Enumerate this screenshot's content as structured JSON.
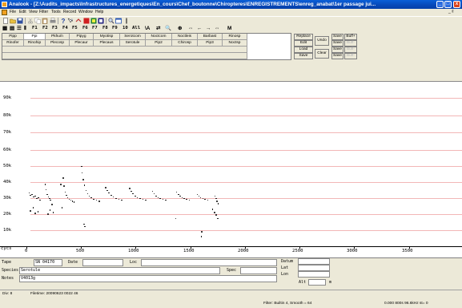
{
  "window": {
    "title": "Analook - [Z:\\Audits_impacts\\Infrastructures_energetiques\\En_cours\\Chef_boutonne\\Chiropteres\\ENREGISTREMENTS\\enreg_anabat\\1er passage jui...",
    "min_glyph": "_",
    "max_glyph": "□",
    "close_glyph": "x"
  },
  "menu": {
    "items": [
      "File",
      "Edit",
      "View",
      "Filter",
      "Tools",
      "Record",
      "Window",
      "Help"
    ],
    "mdi_controls": "_ ₫"
  },
  "toolbar2": {
    "fkeys": [
      "F1",
      "F2",
      "F3",
      "F4",
      "F5",
      "F6",
      "F7",
      "F8",
      "F9",
      "10",
      "All"
    ],
    "extra": [
      "\\A",
      "⇄",
      "🔍",
      "⊕",
      "⇔",
      "←",
      "→",
      "⇔",
      "M"
    ]
  },
  "species": {
    "row1": [
      "Pipp",
      "Ppi",
      "Pkhu/n",
      "Pipyg",
      "Myotisp",
      "Serotcom",
      "Noctcom",
      "Noctleis",
      "Barbast",
      "Rinosp"
    ],
    "row2": [
      "Rinofer",
      "Rinohip",
      "Plecosp",
      "Plecaur",
      "Plecaus",
      "Serotule",
      "Pip2",
      "Chirosp",
      "Pip3",
      "Noctsp"
    ],
    "selected_index": 1
  },
  "panel": {
    "replace": "Replace",
    "edit": "Edit",
    "load": "Load",
    "save": "Save",
    "undo": "Undo",
    "clear": "Clear",
    "save_col": [
      "Save",
      "Save",
      "Save",
      "Save"
    ],
    "buff_col": [
      "Buff+",
      "Buff-",
      "Buff-",
      "Buff-"
    ]
  },
  "chart_data": {
    "type": "scatter",
    "xlabel": "cycs",
    "ylabel": "",
    "x_ticks": [
      "0",
      "500",
      "1000",
      "1500",
      "2000",
      "2500",
      "3000",
      "3500"
    ],
    "y_ticks": [
      "10k",
      "20k",
      "30k",
      "40k",
      "50k",
      "60k",
      "70k",
      "80k",
      "90k"
    ],
    "xlim": [
      0,
      3700
    ],
    "ylim": [
      5000,
      95000
    ],
    "grid": true,
    "series": [
      {
        "values": [
          [
            20,
            33000
          ],
          [
            30,
            31500
          ],
          [
            45,
            32000
          ],
          [
            60,
            30500
          ],
          [
            75,
            31000
          ],
          [
            90,
            29500
          ],
          [
            105,
            30000
          ],
          [
            118,
            28500
          ],
          [
            30,
            22000
          ],
          [
            55,
            24000
          ],
          [
            75,
            20500
          ],
          [
            100,
            21500
          ],
          [
            165,
            38000
          ],
          [
            175,
            35000
          ],
          [
            185,
            32000
          ],
          [
            195,
            30500
          ],
          [
            205,
            29500
          ],
          [
            215,
            28500
          ],
          [
            190,
            20000
          ],
          [
            210,
            22500
          ],
          [
            230,
            26000
          ],
          [
            240,
            21000
          ],
          [
            330,
            42000
          ],
          [
            340,
            37000
          ],
          [
            350,
            33500
          ],
          [
            360,
            31500
          ],
          [
            372,
            30000
          ],
          [
            385,
            29000
          ],
          [
            400,
            28500
          ],
          [
            415,
            28000
          ],
          [
            430,
            27500
          ],
          [
            310,
            38000
          ],
          [
            320,
            24000
          ],
          [
            500,
            49000
          ],
          [
            505,
            45000
          ],
          [
            515,
            41000
          ],
          [
            525,
            37500
          ],
          [
            540,
            34500
          ],
          [
            555,
            32500
          ],
          [
            570,
            31000
          ],
          [
            590,
            30000
          ],
          [
            610,
            29000
          ],
          [
            635,
            28500
          ],
          [
            660,
            28000
          ],
          [
            520,
            14000
          ],
          [
            530,
            12500
          ],
          [
            720,
            36000
          ],
          [
            735,
            34500
          ],
          [
            750,
            33000
          ],
          [
            770,
            31500
          ],
          [
            790,
            30500
          ],
          [
            815,
            29500
          ],
          [
            840,
            29000
          ],
          [
            865,
            28500
          ],
          [
            940,
            35500
          ],
          [
            955,
            34000
          ],
          [
            970,
            32500
          ],
          [
            990,
            31000
          ],
          [
            1010,
            30000
          ],
          [
            1035,
            29500
          ],
          [
            1060,
            29000
          ],
          [
            1085,
            28500
          ],
          [
            1150,
            34000
          ],
          [
            1165,
            32500
          ],
          [
            1180,
            31000
          ],
          [
            1200,
            30000
          ],
          [
            1220,
            29500
          ],
          [
            1245,
            29000
          ],
          [
            1270,
            28500
          ],
          [
            1370,
            33500
          ],
          [
            1385,
            32000
          ],
          [
            1400,
            31000
          ],
          [
            1420,
            30000
          ],
          [
            1440,
            29500
          ],
          [
            1460,
            29000
          ],
          [
            1485,
            28500
          ],
          [
            1560,
            32000
          ],
          [
            1575,
            31000
          ],
          [
            1590,
            30000
          ],
          [
            1610,
            29500
          ],
          [
            1630,
            29000
          ],
          [
            1655,
            28500
          ],
          [
            1720,
            31000
          ],
          [
            1730,
            29500
          ],
          [
            1740,
            28000
          ],
          [
            1750,
            26500
          ],
          [
            1700,
            23000
          ],
          [
            1715,
            21000
          ],
          [
            1730,
            19500
          ],
          [
            1745,
            17500
          ],
          [
            1360,
            17500
          ],
          [
            1600,
            9500
          ],
          [
            1595,
            6500
          ]
        ]
      }
    ]
  },
  "meta": {
    "tape_label": "Tape",
    "tape_value": "SN 04170",
    "date_label": "Date",
    "loc_label": "Loc",
    "species_label": "Species",
    "species_value": "Serotule",
    "spec_label": "Spec",
    "notes_label": "Notes",
    "notes_value": "V4013g",
    "datum_label": "Datum",
    "lat_label": "Lat",
    "lon_label": "Lon",
    "alt_label": "Alt",
    "alt_unit": "m"
  },
  "status": {
    "left": "Div: 8",
    "file": "Filetime: 20090623 0022 46",
    "filter": "Filter: Builtin 4, Smooth = 64",
    "time": "0.000 800s  96.6kHz st= 0"
  },
  "colors": {
    "titlebar": "#0748b8",
    "gridline": "#f2b7b7",
    "chrome": "#ece9d8"
  }
}
